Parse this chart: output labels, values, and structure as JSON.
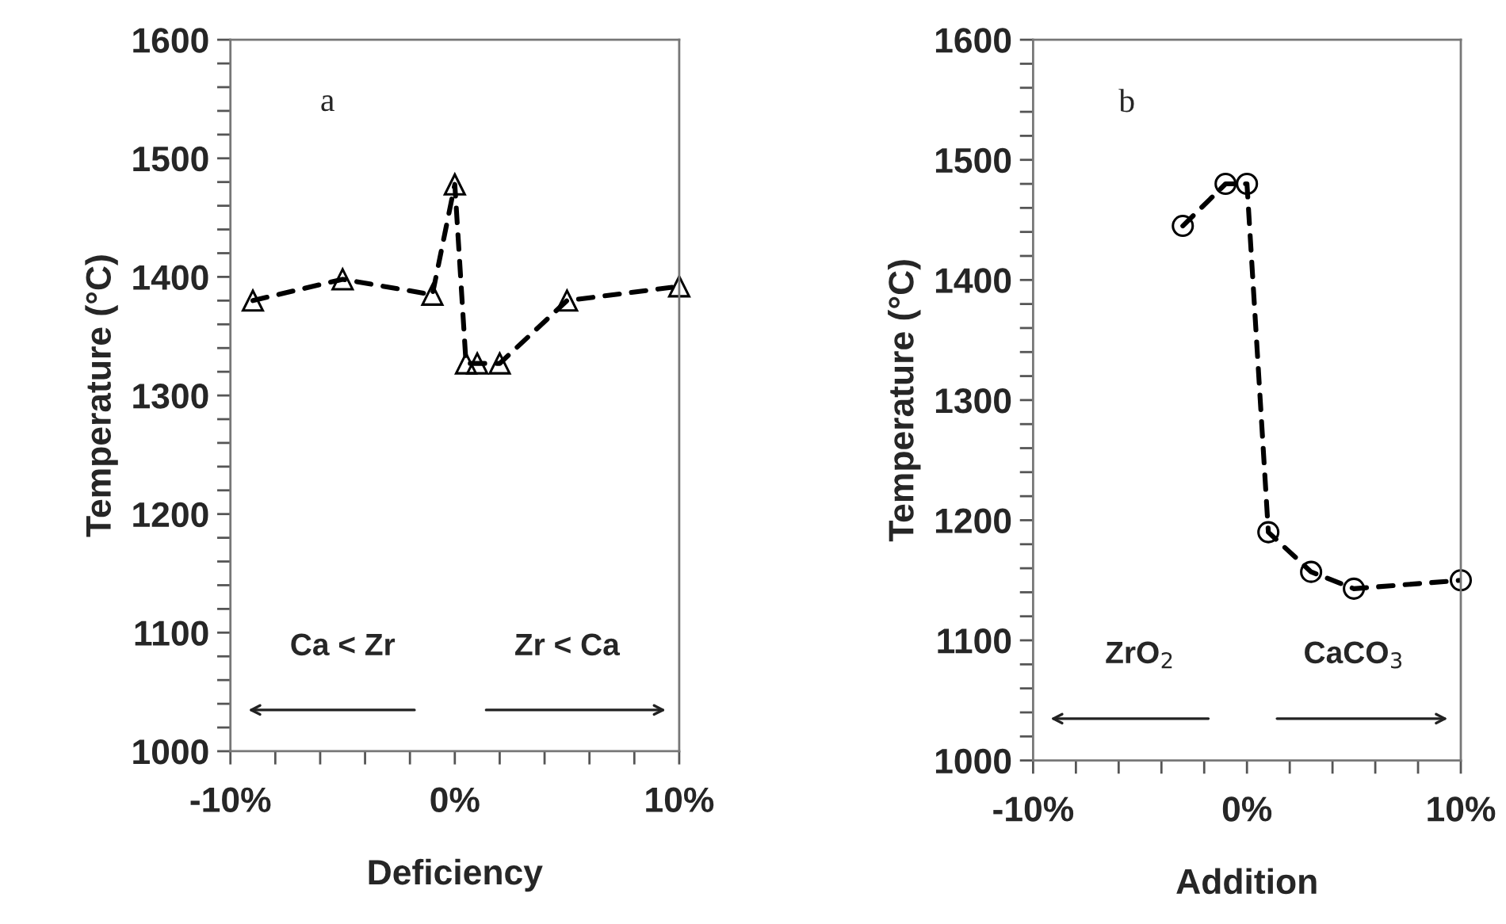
{
  "chart_data": [
    {
      "type": "line",
      "xlabel": "Deficiency",
      "ylabel": "Temperature (°C)",
      "annotations": [
        "a",
        "Ca < Zr",
        "Zr < Ca"
      ],
      "x": [
        -9,
        -5,
        -1,
        0,
        0.5,
        1,
        2,
        5,
        10
      ],
      "series": [
        {
          "color": "#000000",
          "values": [
            1380,
            1398,
            1385,
            1478,
            1327,
            1327,
            1327,
            1380,
            1392
          ]
        }
      ],
      "xlim": [
        -10,
        10
      ],
      "ylim": [
        1000,
        1600
      ],
      "xticks": [
        {
          "value": -10,
          "label": "-10%"
        },
        {
          "value": -8,
          "label": null
        },
        {
          "value": -6,
          "label": null
        },
        {
          "value": -4,
          "label": null
        },
        {
          "value": -2,
          "label": null
        },
        {
          "value": 0,
          "label": "0%"
        },
        {
          "value": 2,
          "label": null
        },
        {
          "value": 4,
          "label": null
        },
        {
          "value": 6,
          "label": null
        },
        {
          "value": 8,
          "label": null
        },
        {
          "value": 10,
          "label": "10%"
        }
      ],
      "yticks": [
        1000,
        {
          "value": 1020,
          "label": null
        },
        {
          "value": 1040,
          "label": null
        },
        {
          "value": 1060,
          "label": null
        },
        {
          "value": 1080,
          "label": null
        },
        1100,
        {
          "value": 1120,
          "label": null
        },
        {
          "value": 1140,
          "label": null
        },
        {
          "value": 1160,
          "label": null
        },
        {
          "value": 1180,
          "label": null
        },
        1200,
        {
          "value": 1220,
          "label": null
        },
        {
          "value": 1240,
          "label": null
        },
        {
          "value": 1260,
          "label": null
        },
        {
          "value": 1280,
          "label": null
        },
        1300,
        {
          "value": 1320,
          "label": null
        },
        {
          "value": 1340,
          "label": null
        },
        {
          "value": 1360,
          "label": null
        },
        {
          "value": 1380,
          "label": null
        },
        1400,
        {
          "value": 1420,
          "label": null
        },
        {
          "value": 1440,
          "label": null
        },
        {
          "value": 1460,
          "label": null
        },
        {
          "value": 1480,
          "label": null
        },
        1500,
        {
          "value": 1520,
          "label": null
        },
        {
          "value": 1540,
          "label": null
        },
        {
          "value": 1560,
          "label": null
        },
        {
          "value": 1580,
          "label": null
        },
        1600
      ],
      "marker": "triangle",
      "line_style": "dashed",
      "grid": false,
      "legend": false
    },
    {
      "type": "line",
      "xlabel": "Addition",
      "ylabel": "Temperature (°C)",
      "annotations": [
        "b",
        "ZrO$_{2}$",
        "CaCO$_{3}$"
      ],
      "x": [
        -3,
        -1,
        0,
        1,
        3,
        5,
        10
      ],
      "series": [
        {
          "color": "#000000",
          "values": [
            1445,
            1480,
            1480,
            1190,
            1157,
            1143,
            1150
          ]
        }
      ],
      "xlim": [
        -10,
        10
      ],
      "ylim": [
        1000,
        1600
      ],
      "xticks": [
        {
          "value": -10,
          "label": "-10%"
        },
        {
          "value": -8,
          "label": null
        },
        {
          "value": -6,
          "label": null
        },
        {
          "value": -4,
          "label": null
        },
        {
          "value": -2,
          "label": null
        },
        {
          "value": 0,
          "label": "0%"
        },
        {
          "value": 2,
          "label": null
        },
        {
          "value": 4,
          "label": null
        },
        {
          "value": 6,
          "label": null
        },
        {
          "value": 8,
          "label": null
        },
        {
          "value": 10,
          "label": "10%"
        }
      ],
      "yticks": [
        1000,
        {
          "value": 1020,
          "label": null
        },
        {
          "value": 1040,
          "label": null
        },
        {
          "value": 1060,
          "label": null
        },
        {
          "value": 1080,
          "label": null
        },
        1100,
        {
          "value": 1120,
          "label": null
        },
        {
          "value": 1140,
          "label": null
        },
        {
          "value": 1160,
          "label": null
        },
        {
          "value": 1180,
          "label": null
        },
        1200,
        {
          "value": 1220,
          "label": null
        },
        {
          "value": 1240,
          "label": null
        },
        {
          "value": 1260,
          "label": null
        },
        {
          "value": 1280,
          "label": null
        },
        1300,
        {
          "value": 1320,
          "label": null
        },
        {
          "value": 1340,
          "label": null
        },
        {
          "value": 1360,
          "label": null
        },
        {
          "value": 1380,
          "label": null
        },
        1400,
        {
          "value": 1420,
          "label": null
        },
        {
          "value": 1440,
          "label": null
        },
        {
          "value": 1460,
          "label": null
        },
        {
          "value": 1480,
          "label": null
        },
        1500,
        {
          "value": 1520,
          "label": null
        },
        {
          "value": 1540,
          "label": null
        },
        {
          "value": 1560,
          "label": null
        },
        {
          "value": 1580,
          "label": null
        },
        1600
      ],
      "marker": "circle",
      "line_style": "dashed",
      "grid": false,
      "legend": false
    }
  ]
}
